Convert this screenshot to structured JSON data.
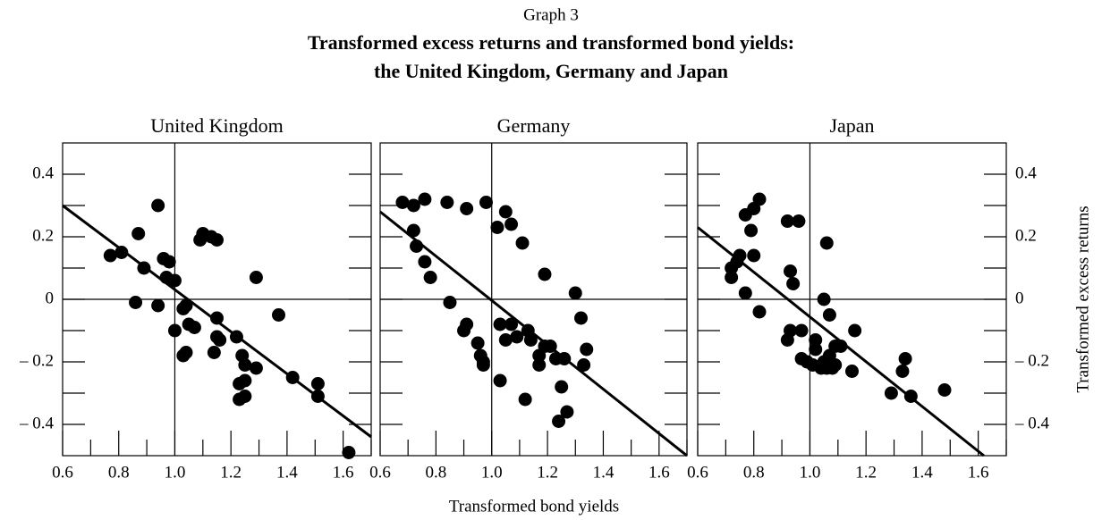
{
  "header": {
    "label": "Graph 3",
    "title": [
      "Transformed excess returns and transformed bond yields:",
      "the United Kingdom, Germany and Japan"
    ]
  },
  "x_label": "Transformed bond yields",
  "y_label": "Transformed excess returns",
  "chart_data": [
    {
      "type": "scatter",
      "title": "United Kingdom",
      "color": "#000000",
      "ytick_side": "left",
      "xlim": [
        0.6,
        1.7
      ],
      "ylim": [
        -0.5,
        0.5
      ],
      "xticks": [
        0.6,
        0.8,
        {
          "value": 1,
          "label": "1.0"
        },
        1.2,
        1.4,
        1.6
      ],
      "yticks": [
        0.4,
        0.2,
        0,
        {
          "value": -0.2,
          "label": "– 0.2"
        },
        {
          "value": -0.4,
          "label": "– 0.4"
        }
      ],
      "xminor": [
        0.7,
        0.9,
        1.1,
        1.3,
        1.5,
        1.7
      ],
      "yminor": [
        0.3,
        0.1,
        -0.1,
        -0.3
      ],
      "reference_lines": {
        "x": 1,
        "y": 0
      },
      "fit": {
        "x": [
          0.6,
          1.7
        ],
        "y": [
          0.3,
          -0.44
        ]
      },
      "x": [
        0.77,
        0.81,
        0.87,
        0.86,
        0.89,
        0.94,
        0.94,
        0.96,
        0.97,
        0.98,
        1.0,
        1.0,
        1.03,
        1.03,
        1.04,
        1.05,
        1.04,
        1.07,
        1.09,
        1.1,
        1.13,
        1.15,
        1.14,
        1.15,
        1.15,
        1.16,
        1.22,
        1.23,
        1.23,
        1.24,
        1.25,
        1.25,
        1.25,
        1.29,
        1.29,
        1.37,
        1.42,
        1.51,
        1.51,
        1.62
      ],
      "values": [
        0.14,
        0.15,
        0.21,
        -0.01,
        0.1,
        0.3,
        -0.02,
        0.13,
        0.07,
        0.12,
        0.06,
        -0.1,
        -0.03,
        -0.18,
        -0.17,
        -0.08,
        -0.02,
        -0.09,
        0.19,
        0.21,
        0.2,
        0.19,
        -0.17,
        -0.06,
        -0.12,
        -0.13,
        -0.12,
        -0.27,
        -0.32,
        -0.18,
        -0.26,
        -0.21,
        -0.31,
        0.07,
        -0.22,
        -0.05,
        -0.25,
        -0.31,
        -0.27,
        -0.49
      ]
    },
    {
      "type": "scatter",
      "title": "Germany",
      "color": "#000000",
      "xlim": [
        0.6,
        1.7
      ],
      "ylim": [
        -0.5,
        0.5
      ],
      "xticks": [
        0.6,
        0.8,
        {
          "value": 1,
          "label": "1.0"
        },
        1.2,
        1.4,
        1.6
      ],
      "yticks": [
        0.4,
        0.2,
        0,
        {
          "value": -0.2,
          "label": "– 0.2"
        },
        {
          "value": -0.4,
          "label": "– 0.4"
        }
      ],
      "xminor": [
        0.7,
        0.9,
        1.1,
        1.3,
        1.5,
        1.7
      ],
      "yminor": [
        0.3,
        0.1,
        -0.1,
        -0.3
      ],
      "reference_lines": {
        "x": 1,
        "y": 0
      },
      "fit": {
        "x": [
          0.6,
          1.7
        ],
        "y": [
          0.28,
          -0.5
        ]
      },
      "x": [
        0.68,
        0.72,
        0.72,
        0.73,
        0.76,
        0.76,
        0.78,
        0.84,
        0.85,
        0.9,
        0.91,
        0.91,
        0.95,
        0.96,
        0.97,
        0.97,
        0.98,
        1.02,
        1.03,
        1.03,
        1.05,
        1.05,
        1.07,
        1.07,
        1.09,
        1.11,
        1.12,
        1.13,
        1.14,
        1.17,
        1.17,
        1.19,
        1.19,
        1.21,
        1.23,
        1.24,
        1.25,
        1.26,
        1.27,
        1.3,
        1.32,
        1.33,
        1.34
      ],
      "values": [
        0.31,
        0.3,
        0.22,
        0.17,
        0.32,
        0.12,
        0.07,
        0.31,
        -0.01,
        -0.1,
        0.29,
        -0.08,
        -0.14,
        -0.18,
        -0.2,
        -0.21,
        0.31,
        0.23,
        -0.08,
        -0.26,
        0.28,
        -0.13,
        0.24,
        -0.08,
        -0.12,
        0.18,
        -0.32,
        -0.1,
        -0.13,
        -0.21,
        -0.18,
        0.08,
        -0.15,
        -0.15,
        -0.19,
        -0.39,
        -0.28,
        -0.19,
        -0.36,
        0.02,
        -0.06,
        -0.21,
        -0.16
      ]
    },
    {
      "type": "scatter",
      "title": "Japan",
      "color": "#000000",
      "ytick_side": "right",
      "xlim": [
        0.6,
        1.7
      ],
      "ylim": [
        -0.5,
        0.5
      ],
      "xticks": [
        0.6,
        0.8,
        {
          "value": 1,
          "label": "1.0"
        },
        1.2,
        1.4,
        1.6
      ],
      "yticks": [
        0.4,
        0.2,
        0,
        {
          "value": -0.2,
          "label": "– 0.2"
        },
        {
          "value": -0.4,
          "label": "– 0.4"
        }
      ],
      "xminor": [
        0.7,
        0.9,
        1.1,
        1.3,
        1.5,
        1.7
      ],
      "yminor": [
        0.3,
        0.1,
        -0.1,
        -0.3
      ],
      "reference_lines": {
        "x": 1,
        "y": 0
      },
      "fit": {
        "x": [
          0.6,
          1.62
        ],
        "y": [
          0.23,
          -0.5
        ]
      },
      "x": [
        0.72,
        0.72,
        0.74,
        0.75,
        0.77,
        0.77,
        0.79,
        0.8,
        0.8,
        0.82,
        0.82,
        0.92,
        0.92,
        0.93,
        0.93,
        0.94,
        0.96,
        0.97,
        0.97,
        0.99,
        1.01,
        1.02,
        1.02,
        1.04,
        1.05,
        1.05,
        1.06,
        1.06,
        1.07,
        1.07,
        1.08,
        1.09,
        1.09,
        1.11,
        1.15,
        1.16,
        1.29,
        1.33,
        1.34,
        1.36,
        1.48
      ],
      "values": [
        0.07,
        0.1,
        0.12,
        0.14,
        0.02,
        0.27,
        0.22,
        0.29,
        0.14,
        0.32,
        -0.04,
        -0.13,
        0.25,
        -0.1,
        0.09,
        0.05,
        0.25,
        -0.19,
        -0.1,
        -0.2,
        -0.21,
        -0.13,
        -0.16,
        -0.22,
        0.0,
        -0.2,
        0.18,
        -0.22,
        -0.05,
        -0.18,
        -0.22,
        -0.15,
        -0.21,
        -0.15,
        -0.23,
        -0.1,
        -0.3,
        -0.23,
        -0.19,
        -0.31,
        -0.29
      ]
    }
  ]
}
